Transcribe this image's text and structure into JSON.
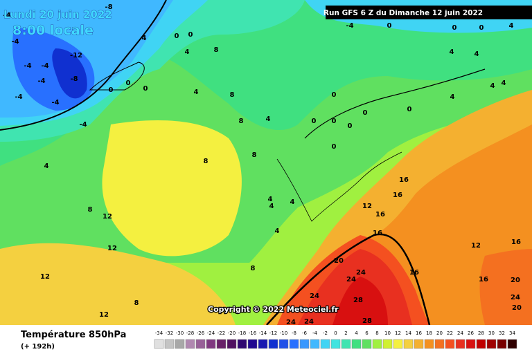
{
  "header": {
    "date": "Lundi 20 juin 2022",
    "time": "8:00 locale",
    "run": "Run GFS 6 Z du Dimanche 12 juin 2022",
    "copyright": "Copyright © 2022 Meteociel.fr"
  },
  "footer": {
    "title": "Température 850hPa",
    "lead": "(+ 192h)"
  },
  "legend": {
    "ticks": [
      -34,
      -32,
      -30,
      -28,
      -26,
      -24,
      -22,
      -20,
      -18,
      -16,
      -14,
      -12,
      -10,
      -8,
      -6,
      -4,
      -2,
      0,
      2,
      4,
      6,
      8,
      10,
      12,
      14,
      16,
      18,
      20,
      22,
      24,
      26,
      28,
      30,
      32,
      34
    ],
    "colors": [
      "#e0e0e0",
      "#c4c4c4",
      "#a8a8a8",
      "#b088b0",
      "#986098",
      "#803880",
      "#682068",
      "#501060",
      "#300870",
      "#200890",
      "#1818b0",
      "#1030d0",
      "#2050e8",
      "#2870ff",
      "#3898ff",
      "#40b8ff",
      "#40d4f4",
      "#40e4e0",
      "#40e4b0",
      "#40e080",
      "#60e060",
      "#a0f040",
      "#d0f030",
      "#f4f040",
      "#f4d040",
      "#f4b030",
      "#f49020",
      "#f47020",
      "#f45020",
      "#e83020",
      "#d81010",
      "#c00000",
      "#a00000",
      "#780000",
      "#300000"
    ]
  },
  "map": {
    "isotherm_labels": [
      "-8",
      "-4",
      "-4",
      "-12",
      "-8",
      "-4",
      "-4",
      "-4",
      "-4",
      "-4",
      "-4",
      "0",
      "4",
      "0",
      "0",
      "4",
      "0",
      "0",
      "8",
      "4",
      "8",
      "4",
      "8",
      "8",
      "4",
      "4",
      "4",
      "4",
      "4",
      "8",
      "8",
      "12",
      "12",
      "12",
      "12",
      "8",
      "8",
      "16",
      "16",
      "12",
      "16",
      "16",
      "20",
      "24",
      "24",
      "24",
      "28",
      "28",
      "24",
      "24",
      "16",
      "12",
      "16",
      "16",
      "20",
      "20",
      "24",
      "-4",
      "0",
      "0",
      "4",
      "4",
      "4",
      "0",
      "0",
      "0",
      "0",
      "0",
      "0",
      "0",
      "0",
      "4",
      "4",
      "4"
    ]
  }
}
